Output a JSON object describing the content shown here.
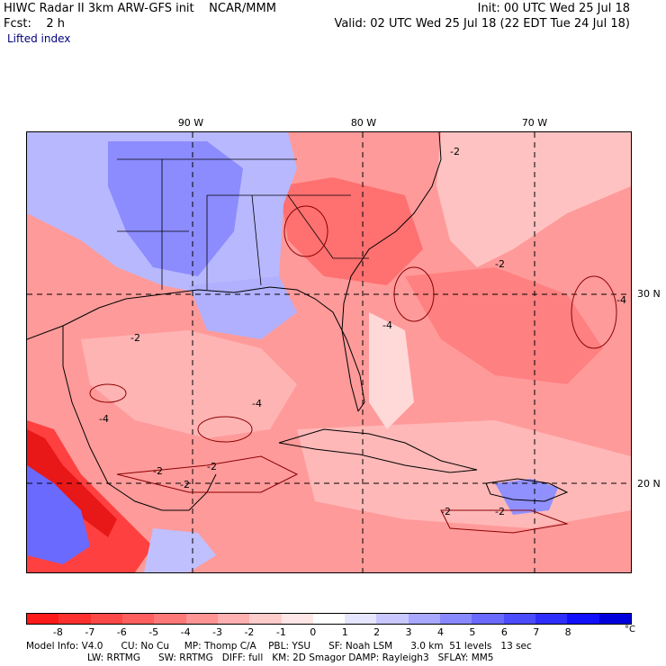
{
  "header": {
    "title": "HIWC Radar II 3km ARW-GFS init",
    "org": "NCAR/MMM",
    "init": "Init: 00 UTC Wed 25 Jul 18",
    "fcst": "Fcst:    2 h",
    "valid": "Valid: 02 UTC Wed 25 Jul 18 (22 EDT Tue 24 Jul 18)",
    "field": "Lifted index"
  },
  "axes": {
    "lon_labels": [
      "90 W",
      "80 W",
      "70 W"
    ],
    "lat_labels": [
      "30 N",
      "20 N"
    ]
  },
  "contour_labels": [
    "-2",
    "-4",
    "-2",
    "-2",
    "-4",
    "-2",
    "-2",
    "-2",
    "-4",
    "-2",
    "-2",
    "-4"
  ],
  "colorbar": {
    "labels": [
      "-8",
      "-7",
      "-6",
      "-5",
      "-4",
      "-3",
      "-2",
      "-1",
      "0",
      "1",
      "2",
      "3",
      "4",
      "5",
      "6",
      "7",
      "8"
    ],
    "unit": "°C",
    "colors": [
      "#ff1a1a",
      "#ff3030",
      "#ff4848",
      "#ff5f5f",
      "#ff7878",
      "#ff9494",
      "#ffb0b0",
      "#ffcccc",
      "#ffe6e6",
      "#ffffff",
      "#e6e6ff",
      "#c8c8ff",
      "#a8a8ff",
      "#8888ff",
      "#6a6aff",
      "#4c4cff",
      "#2e2eff",
      "#1010ff",
      "#0000dd"
    ]
  },
  "footer": {
    "line1": "Model Info: V4.0      CU: No Cu     MP: Thomp C/A    PBL: YSU      SF: Noah LSM      3.0 km  51 levels   13 sec",
    "line2": "LW: RRTMG      SW: RRTMG   DIFF: full   KM: 2D Smagor DAMP: Rayleigh3   SFLAY: MM5"
  }
}
